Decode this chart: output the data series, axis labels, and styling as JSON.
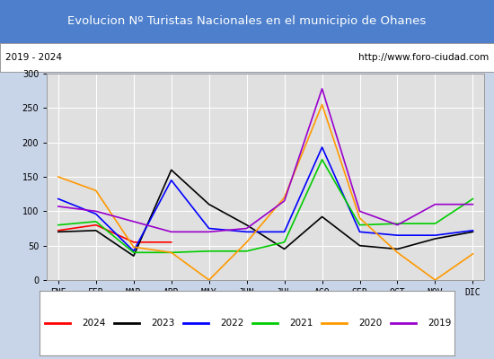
{
  "title": "Evolucion Nº Turistas Nacionales en el municipio de Ohanes",
  "subtitle_left": "2019 - 2024",
  "subtitle_right": "http://www.foro-ciudad.com",
  "title_bg_color": "#4d7fcc",
  "title_text_color": "#ffffff",
  "subtitle_bg_color": "#ffffff",
  "subtitle_text_color": "#000000",
  "plot_bg_color": "#e0e0e0",
  "fig_bg_color": "#c8d4e8",
  "months": [
    "ENE",
    "FEB",
    "MAR",
    "ABR",
    "MAY",
    "JUN",
    "JUL",
    "AGO",
    "SEP",
    "OCT",
    "NOV",
    "DIC"
  ],
  "ylim": [
    0,
    300
  ],
  "yticks": [
    0,
    50,
    100,
    150,
    200,
    250,
    300
  ],
  "series": {
    "2024": {
      "color": "#ff0000",
      "values": [
        72,
        80,
        55,
        55,
        null,
        null,
        null,
        null,
        null,
        null,
        null,
        null
      ]
    },
    "2023": {
      "color": "#000000",
      "values": [
        70,
        72,
        35,
        160,
        110,
        80,
        45,
        92,
        50,
        45,
        60,
        70
      ]
    },
    "2022": {
      "color": "#0000ff",
      "values": [
        118,
        96,
        42,
        145,
        75,
        70,
        70,
        193,
        70,
        65,
        65,
        72
      ]
    },
    "2021": {
      "color": "#00cc00",
      "values": [
        80,
        85,
        40,
        40,
        42,
        42,
        55,
        175,
        80,
        82,
        82,
        118
      ]
    },
    "2020": {
      "color": "#ff9900",
      "values": [
        150,
        130,
        48,
        40,
        0,
        55,
        120,
        255,
        90,
        40,
        0,
        38
      ]
    },
    "2019": {
      "color": "#9900cc",
      "values": [
        107,
        100,
        85,
        70,
        70,
        75,
        115,
        278,
        100,
        80,
        110,
        110
      ]
    }
  },
  "legend_order": [
    "2024",
    "2023",
    "2022",
    "2021",
    "2020",
    "2019"
  ]
}
